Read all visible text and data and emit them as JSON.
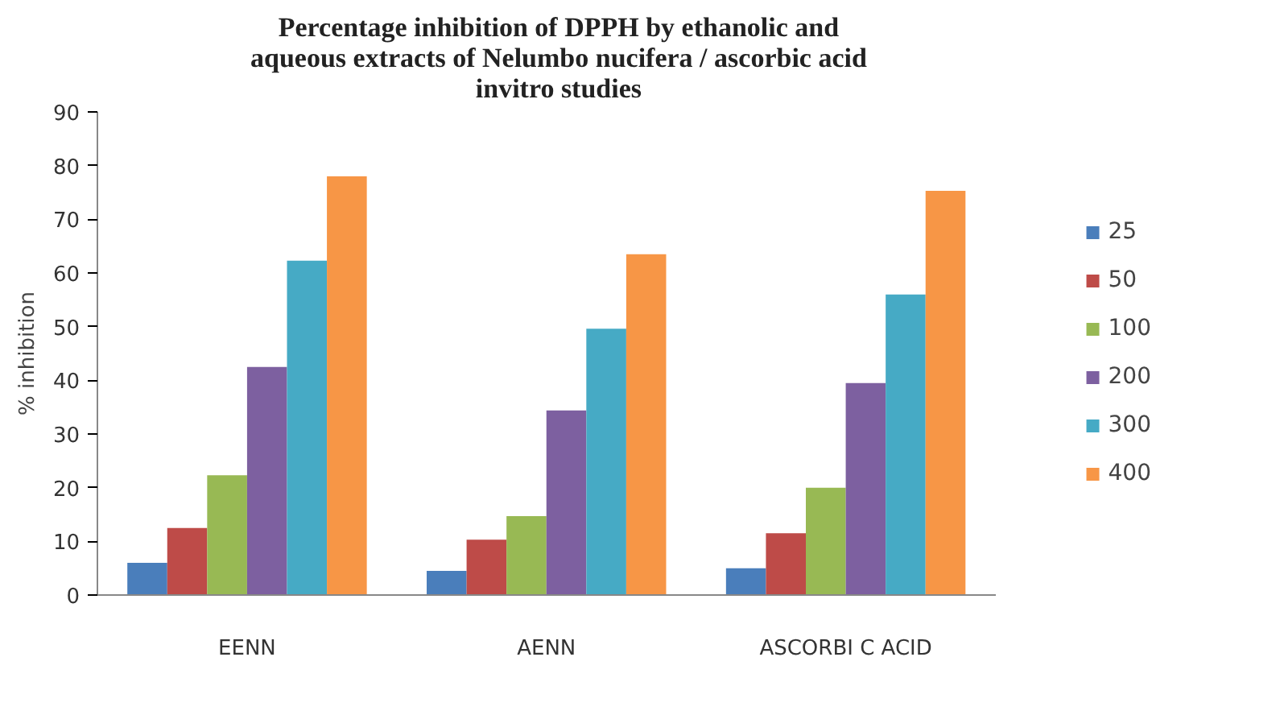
{
  "chart_data": {
    "type": "bar",
    "title": "Percentage inhibition of DPPH by ethanolic and\naqueous extracts of Nelumbo nucifera / ascorbic acid\ninvitro studies",
    "ylabel": "% inhibition",
    "categories": [
      "EENN",
      "AENN",
      "ASCORBI C ACID"
    ],
    "series": [
      {
        "name": "25",
        "color": "#4a7ebb",
        "values": [
          6,
          4.5,
          5
        ]
      },
      {
        "name": "50",
        "color": "#be4b48",
        "values": [
          12.5,
          10.3,
          11.5
        ]
      },
      {
        "name": "100",
        "color": "#98b954",
        "values": [
          22.3,
          14.7,
          20
        ]
      },
      {
        "name": "200",
        "color": "#7d60a0",
        "values": [
          42.5,
          34.4,
          39.5
        ]
      },
      {
        "name": "300",
        "color": "#46aac5",
        "values": [
          62.3,
          49.6,
          56
        ]
      },
      {
        "name": "400",
        "color": "#f79646",
        "values": [
          78,
          63.5,
          75.3
        ]
      }
    ],
    "ylim": [
      0,
      90
    ],
    "yticks": [
      0,
      10,
      20,
      30,
      40,
      50,
      60,
      70,
      80,
      90
    ],
    "grid": false,
    "legend": "right"
  }
}
